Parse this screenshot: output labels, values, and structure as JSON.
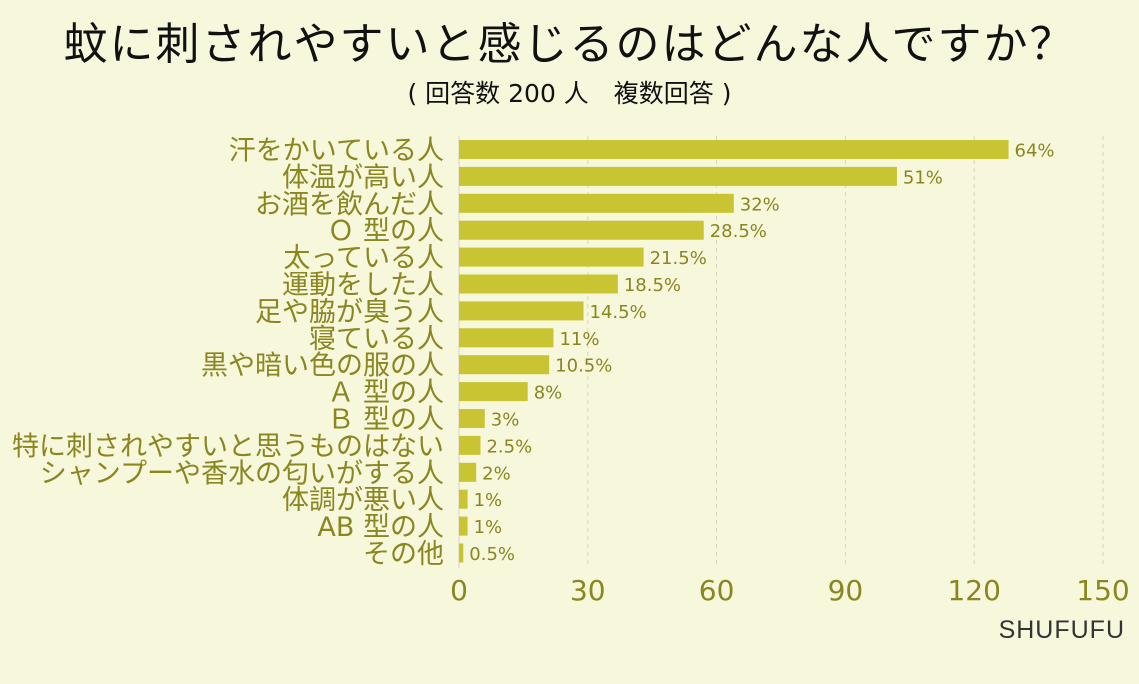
{
  "header": {
    "title": "蚊に刺されやすいと感じるのはどんな人ですか？",
    "subtitle": "( 回答数 200 人　複数回答 )"
  },
  "brand": "SHUFUFU",
  "colors": {
    "background": "#f7f7dc",
    "bar": "#c9c431",
    "label": "#8a8620",
    "grid": "#d6d6c4"
  },
  "chart_data": {
    "type": "bar",
    "orientation": "horizontal",
    "categories": [
      "汗をかいている人",
      "体温が高い人",
      "お酒を飲んだ人",
      "Ｏ 型の人",
      "太っている人",
      "運動をした人",
      "足や脇が臭う人",
      "寝ている人",
      "黒や暗い色の服の人",
      "Ａ 型の人",
      "Ｂ 型の人",
      "特に刺されやすいと思うものはない",
      "シャンプーや香水の匂いがする人",
      "体調が悪い人",
      "AB 型の人",
      "その他"
    ],
    "values": [
      128,
      102,
      64,
      57,
      43,
      37,
      29,
      22,
      21,
      16,
      6,
      5,
      4,
      2,
      2,
      1
    ],
    "data_labels": [
      "64%",
      "51%",
      "32%",
      "28.5%",
      "21.5%",
      "18.5%",
      "14.5%",
      "11%",
      "10.5%",
      "8%",
      "3%",
      "2.5%",
      "2%",
      "1%",
      "1%",
      "0.5%"
    ],
    "xticks": [
      "0",
      "30",
      "60",
      "90",
      "120",
      "150"
    ],
    "xlim": [
      0,
      150
    ],
    "grid": "vertical dashed",
    "title": "蚊に刺されやすいと感じるのはどんな人ですか？",
    "subtitle": "( 回答数 200 人　複数回答 )"
  }
}
